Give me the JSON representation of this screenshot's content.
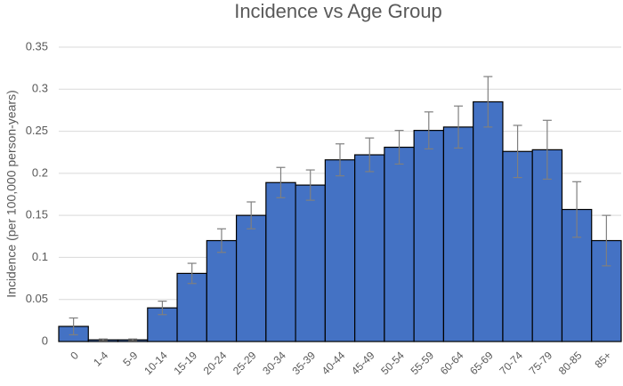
{
  "chart_data": {
    "type": "bar",
    "title": "Incidence vs Age Group",
    "y_label": "Incidence (per 100,000 person-years)",
    "categories": [
      "0",
      "1-4",
      "5-9",
      "10-14",
      "15-19",
      "20-24",
      "25-29",
      "30-34",
      "35-39",
      "40-44",
      "45-49",
      "50-54",
      "55-59",
      "60-64",
      "65-69",
      "70-74",
      "75-79",
      "80-85",
      "85+"
    ],
    "values": [
      0.018,
      0.002,
      0.002,
      0.04,
      0.081,
      0.12,
      0.15,
      0.189,
      0.186,
      0.216,
      0.222,
      0.231,
      0.251,
      0.255,
      0.285,
      0.226,
      0.228,
      0.157,
      0.12
    ],
    "errors": [
      0.01,
      0.001,
      0.001,
      0.008,
      0.012,
      0.014,
      0.016,
      0.018,
      0.018,
      0.019,
      0.02,
      0.02,
      0.022,
      0.025,
      0.03,
      0.031,
      0.035,
      0.033,
      0.03
    ],
    "color": "#4472c4",
    "ylim": [
      0,
      0.35
    ],
    "yticks": [
      0,
      0.05,
      0.1,
      0.15,
      0.2,
      0.25,
      0.3,
      0.35
    ],
    "grid": true
  }
}
